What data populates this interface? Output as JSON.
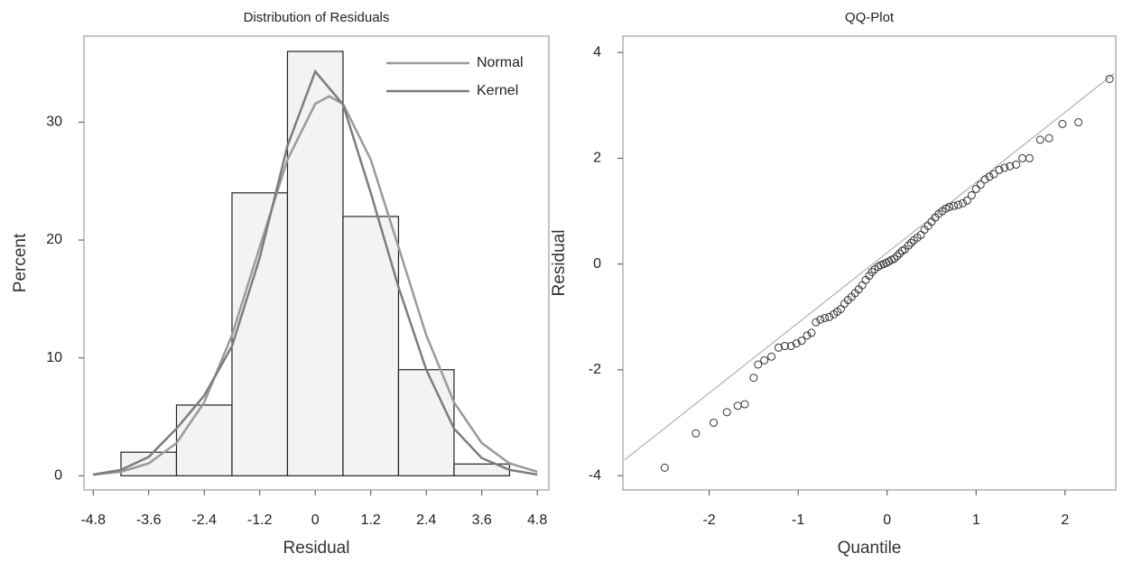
{
  "chart_data": [
    {
      "type": "histogram",
      "title": "Distribution of Residuals",
      "x_label": "Residual",
      "y_label": "Percent",
      "bins": [
        -4.2,
        -3.0,
        -1.8,
        -0.6,
        0.6,
        1.8,
        3.0,
        4.2
      ],
      "values": [
        2,
        6,
        24,
        36,
        22,
        9,
        1
      ],
      "color": "#f3f3f3",
      "series": [
        {
          "name": "Normal",
          "color": "#9a9a9a",
          "x": [
            -4.8,
            -4.2,
            -3.6,
            -3.0,
            -2.4,
            -1.8,
            -1.2,
            -0.6,
            0,
            0.3,
            0.6,
            1.2,
            1.8,
            2.4,
            3.0,
            3.6,
            4.2,
            4.8
          ],
          "values": [
            0.09,
            0.34,
            1.05,
            2.77,
            6.23,
            11.93,
            19.4,
            26.83,
            31.55,
            32.2,
            31.55,
            26.83,
            19.4,
            11.93,
            6.23,
            2.77,
            1.05,
            0.34
          ]
        },
        {
          "name": "Kernel",
          "color": "#7d7d7d",
          "x": [
            -4.8,
            -4.2,
            -3.6,
            -3.0,
            -2.4,
            -1.8,
            -1.2,
            -0.6,
            0,
            0.6,
            1.2,
            1.8,
            2.4,
            3.0,
            3.6,
            4.2,
            4.8
          ],
          "values": [
            0.1,
            0.5,
            1.6,
            4.0,
            6.8,
            11,
            18.5,
            28,
            34.3,
            31.5,
            24,
            16,
            9,
            4,
            1.5,
            0.5,
            0.1
          ]
        }
      ],
      "legend": "upper right",
      "xlim": [
        -5.0,
        5.05
      ],
      "ylim": [
        -1.2,
        37.3
      ],
      "xticks": [
        -4.8,
        -3.6,
        -2.4,
        -1.2,
        0,
        1.2,
        2.4,
        3.6,
        4.8
      ],
      "yticks": [
        0,
        10,
        20,
        30
      ]
    },
    {
      "type": "scatter",
      "title": "QQ-Plot",
      "x_label": "Quantile",
      "y_label": "Residual",
      "x": [
        -2.5,
        -2.15,
        -1.95,
        -1.8,
        -1.68,
        -1.6,
        -1.5,
        -1.45,
        -1.38,
        -1.3,
        -1.22,
        -1.15,
        -1.08,
        -1.02,
        -0.96,
        -0.9,
        -0.85,
        -0.8,
        -0.75,
        -0.7,
        -0.65,
        -0.6,
        -0.56,
        -0.52,
        -0.48,
        -0.44,
        -0.4,
        -0.36,
        -0.32,
        -0.28,
        -0.24,
        -0.2,
        -0.17,
        -0.14,
        -0.1,
        -0.07,
        -0.04,
        -0.01,
        0.02,
        0.05,
        0.08,
        0.11,
        0.14,
        0.17,
        0.2,
        0.24,
        0.27,
        0.3,
        0.34,
        0.38,
        0.42,
        0.46,
        0.5,
        0.54,
        0.58,
        0.62,
        0.66,
        0.7,
        0.75,
        0.8,
        0.85,
        0.9,
        0.95,
        1.0,
        1.05,
        1.1,
        1.15,
        1.2,
        1.26,
        1.32,
        1.38,
        1.45,
        1.52,
        1.6,
        1.72,
        1.82,
        1.97,
        2.15,
        2.5
      ],
      "values": [
        -3.85,
        -3.2,
        -3.0,
        -2.8,
        -2.68,
        -2.65,
        -2.15,
        -1.9,
        -1.82,
        -1.75,
        -1.58,
        -1.55,
        -1.55,
        -1.5,
        -1.45,
        -1.35,
        -1.3,
        -1.1,
        -1.05,
        -1.02,
        -1.0,
        -0.95,
        -0.9,
        -0.85,
        -0.75,
        -0.68,
        -0.62,
        -0.55,
        -0.48,
        -0.4,
        -0.3,
        -0.22,
        -0.15,
        -0.1,
        -0.05,
        -0.02,
        0.0,
        0.02,
        0.05,
        0.08,
        0.1,
        0.15,
        0.2,
        0.25,
        0.28,
        0.35,
        0.4,
        0.45,
        0.5,
        0.55,
        0.65,
        0.72,
        0.8,
        0.88,
        0.95,
        1.0,
        1.05,
        1.08,
        1.1,
        1.12,
        1.15,
        1.2,
        1.3,
        1.42,
        1.5,
        1.6,
        1.65,
        1.7,
        1.78,
        1.82,
        1.85,
        1.88,
        2.0,
        2.0,
        2.35,
        2.38,
        2.65,
        2.68,
        3.5
      ],
      "color": "#333333",
      "reference_line": {
        "x": [
          -2.95,
          2.55
        ],
        "values": [
          -3.7,
          3.6
        ],
        "color": "#b0b0b0"
      },
      "xlim": [
        -2.97,
        2.57
      ],
      "ylim": [
        -4.27,
        4.31
      ],
      "xticks": [
        -2,
        -1,
        0,
        1,
        2
      ],
      "yticks": [
        -4,
        -2,
        0,
        2,
        4
      ]
    }
  ]
}
